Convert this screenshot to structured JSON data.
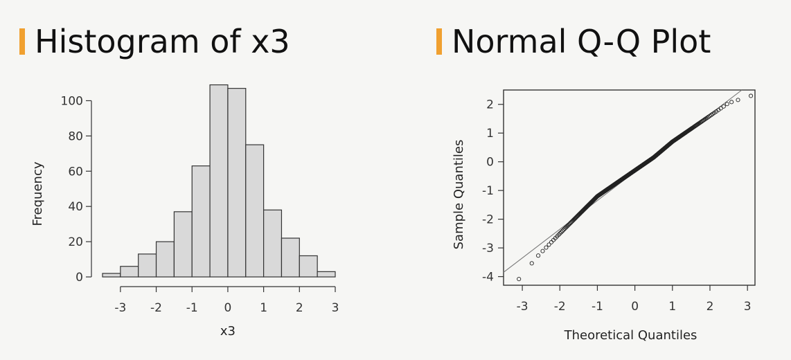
{
  "theme": {
    "accent": "#f0a030",
    "bar_fill": "#d9d9d9",
    "stroke": "#333333"
  },
  "chart_data": [
    {
      "type": "bar",
      "title": "Histogram of x3",
      "xlabel": "x3",
      "ylabel": "Frequency",
      "bin_edges": [
        -3.5,
        -3.0,
        -2.5,
        -2.0,
        -1.5,
        -1.0,
        -0.5,
        0.0,
        0.5,
        1.0,
        1.5,
        2.0,
        2.5,
        3.0
      ],
      "values": [
        2,
        6,
        13,
        20,
        37,
        63,
        109,
        107,
        75,
        38,
        22,
        12,
        3
      ],
      "xlim": [
        -3.5,
        3.0
      ],
      "ylim": [
        0,
        110
      ],
      "x_ticks": [
        -3,
        -2,
        -1,
        0,
        1,
        2,
        3
      ],
      "y_ticks": [
        0,
        20,
        40,
        60,
        80,
        100
      ],
      "grid": false
    },
    {
      "type": "scatter",
      "title": "Normal Q-Q Plot",
      "xlabel": "Theoretical Quantiles",
      "ylabel": "Sample Quantiles",
      "xlim": [
        -3.5,
        3.2
      ],
      "ylim": [
        -4.3,
        2.5
      ],
      "x_ticks": [
        -3,
        -2,
        -1,
        0,
        1,
        2,
        3
      ],
      "y_ticks": [
        -4,
        -3,
        -2,
        -1,
        0,
        1,
        2
      ],
      "reference_line": {
        "slope": 1.0,
        "intercept": -0.35
      },
      "n_points": 500,
      "sample_quantile_curve": {
        "x": [
          -3.1,
          -2.6,
          -2.0,
          -1.5,
          -1.0,
          -0.5,
          0.0,
          0.5,
          1.0,
          1.5,
          2.0,
          2.5,
          3.1
        ],
        "y": [
          -4.1,
          -3.3,
          -2.5,
          -1.85,
          -1.2,
          -0.75,
          -0.3,
          0.15,
          0.7,
          1.15,
          1.6,
          2.05,
          2.3
        ]
      },
      "grid": false
    }
  ]
}
